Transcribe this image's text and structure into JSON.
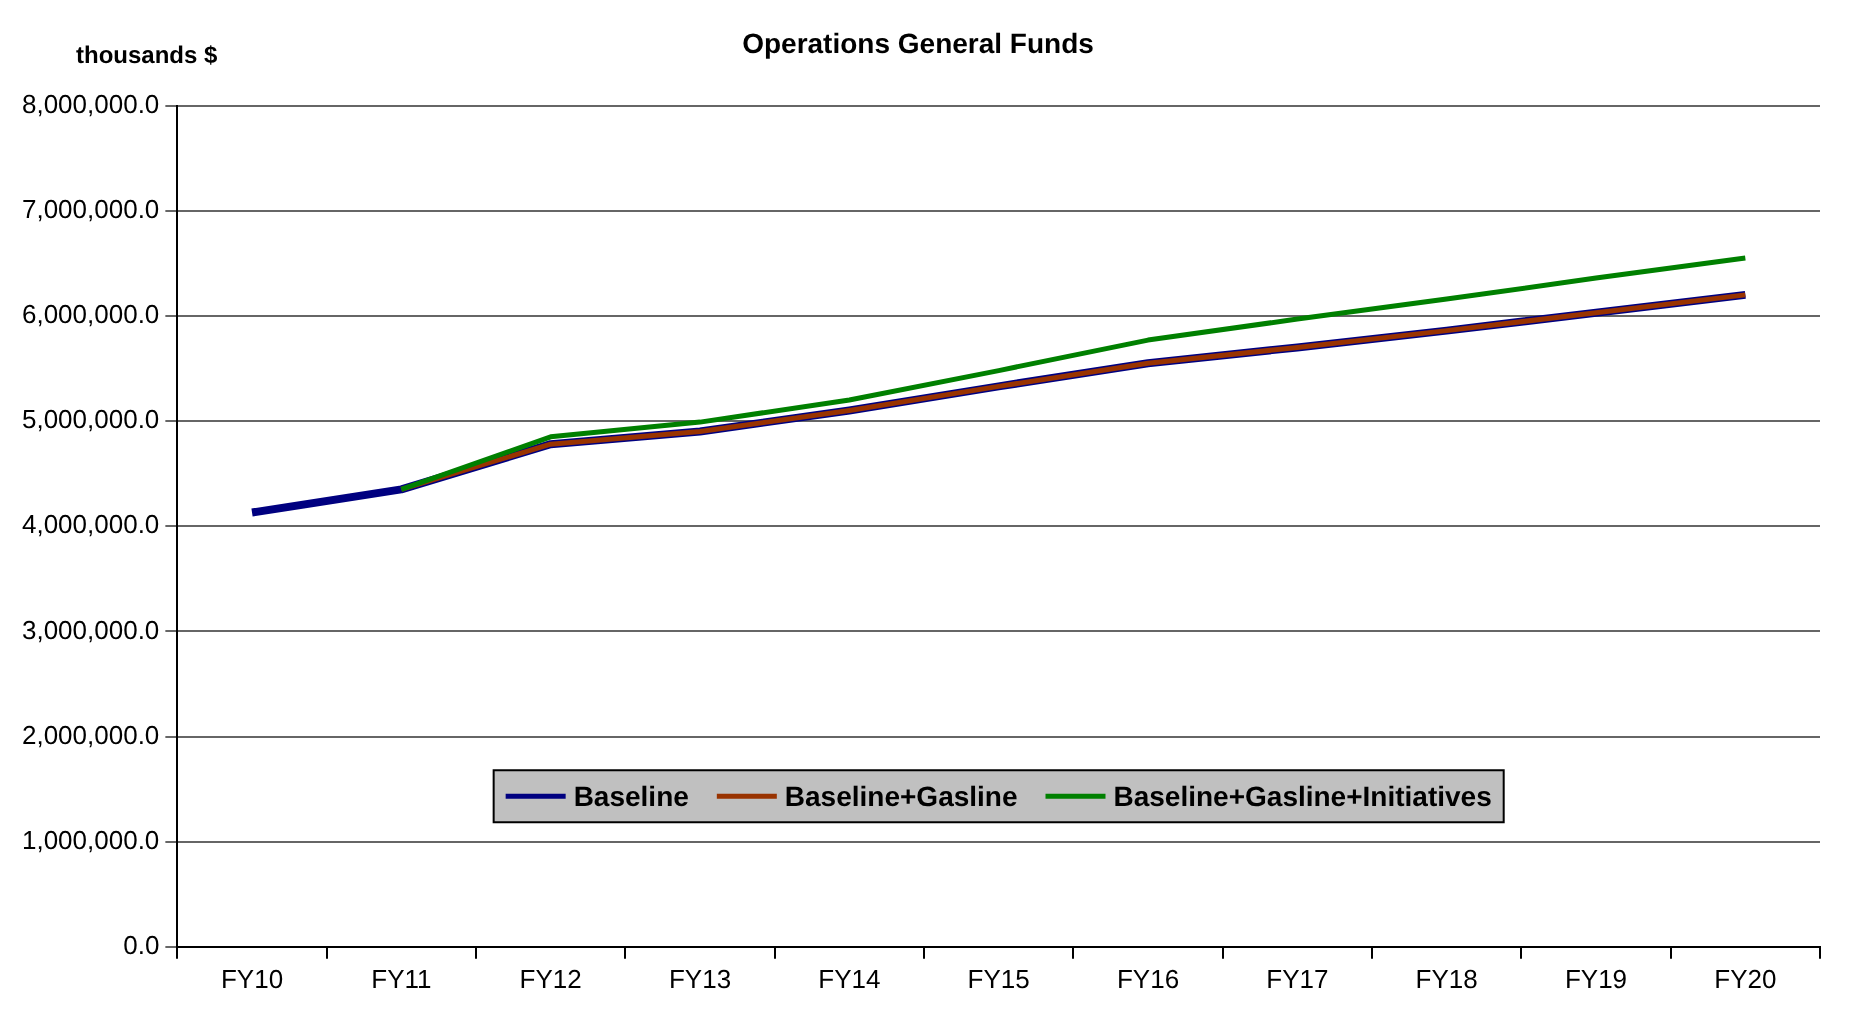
{
  "chart_data": {
    "type": "line",
    "title": "Operations General Funds",
    "ylabel": "thousands $",
    "categories": [
      "FY10",
      "FY11",
      "FY12",
      "FY13",
      "FY14",
      "FY15",
      "FY16",
      "FY17",
      "FY18",
      "FY19",
      "FY20"
    ],
    "series": [
      {
        "name": "Baseline",
        "color": "#000080",
        "values": [
          4130000,
          4350000,
          4780000,
          4900000,
          5100000,
          5330000,
          5550000,
          5700000,
          5860000,
          6030000,
          6200000
        ]
      },
      {
        "name": "Baseline+Gasline",
        "color": "#993300",
        "values": [
          null,
          4350000,
          4780000,
          4900000,
          5100000,
          5330000,
          5550000,
          5700000,
          5860000,
          6030000,
          6200000
        ]
      },
      {
        "name": "Baseline+Gasline+Initiatives",
        "color": "#008000",
        "values": [
          null,
          4350000,
          4850000,
          4990000,
          5200000,
          5480000,
          5770000,
          5970000,
          6160000,
          6360000,
          6550000
        ]
      }
    ],
    "ylim": [
      0,
      8000000
    ],
    "yticks": [
      {
        "value": 0,
        "label": "0.0"
      },
      {
        "value": 1000000,
        "label": "1,000,000.0"
      },
      {
        "value": 2000000,
        "label": "2,000,000.0"
      },
      {
        "value": 3000000,
        "label": "3,000,000.0"
      },
      {
        "value": 4000000,
        "label": "4,000,000.0"
      },
      {
        "value": 5000000,
        "label": "5,000,000.0"
      },
      {
        "value": 6000000,
        "label": "6,000,000.0"
      },
      {
        "value": 7000000,
        "label": "7,000,000.0"
      },
      {
        "value": 8000000,
        "label": "8,000,000.0"
      }
    ],
    "grid": "y",
    "legend": "bottom",
    "marker": "none",
    "line_style": "solid"
  }
}
